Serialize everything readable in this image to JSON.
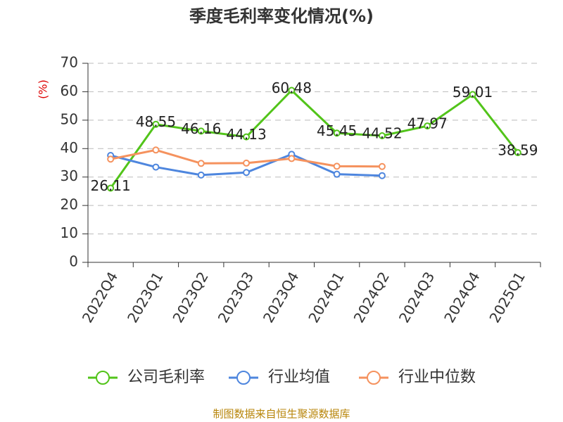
{
  "chart_data": {
    "type": "line",
    "title": "季度毛利率变化情况(%)",
    "y_label": "(%)",
    "categories": [
      "2022Q4",
      "2023Q1",
      "2023Q2",
      "2023Q3",
      "2023Q4",
      "2024Q1",
      "2024Q2",
      "2024Q3",
      "2024Q4",
      "2025Q1"
    ],
    "series": [
      {
        "name": "公司毛利率",
        "color": "#52c41a",
        "data_labels": true,
        "values": [
          26.11,
          48.55,
          46.16,
          44.13,
          60.48,
          45.45,
          44.52,
          47.97,
          59.01,
          38.59
        ]
      },
      {
        "name": "行业均值",
        "color": "#4e86de",
        "data_labels": false,
        "values": [
          37.6,
          33.5,
          30.7,
          31.6,
          38.0,
          31.0,
          30.5,
          null,
          null,
          null
        ]
      },
      {
        "name": "行业中位数",
        "color": "#f5925e",
        "data_labels": false,
        "values": [
          36.3,
          39.5,
          34.8,
          34.9,
          36.5,
          33.8,
          33.7,
          null,
          null,
          null
        ]
      }
    ],
    "ylim": [
      0,
      70
    ],
    "yticks": [
      0,
      10,
      20,
      30,
      40,
      50,
      60,
      70
    ],
    "grid": true,
    "source": "制图数据来自恒生聚源数据库"
  }
}
